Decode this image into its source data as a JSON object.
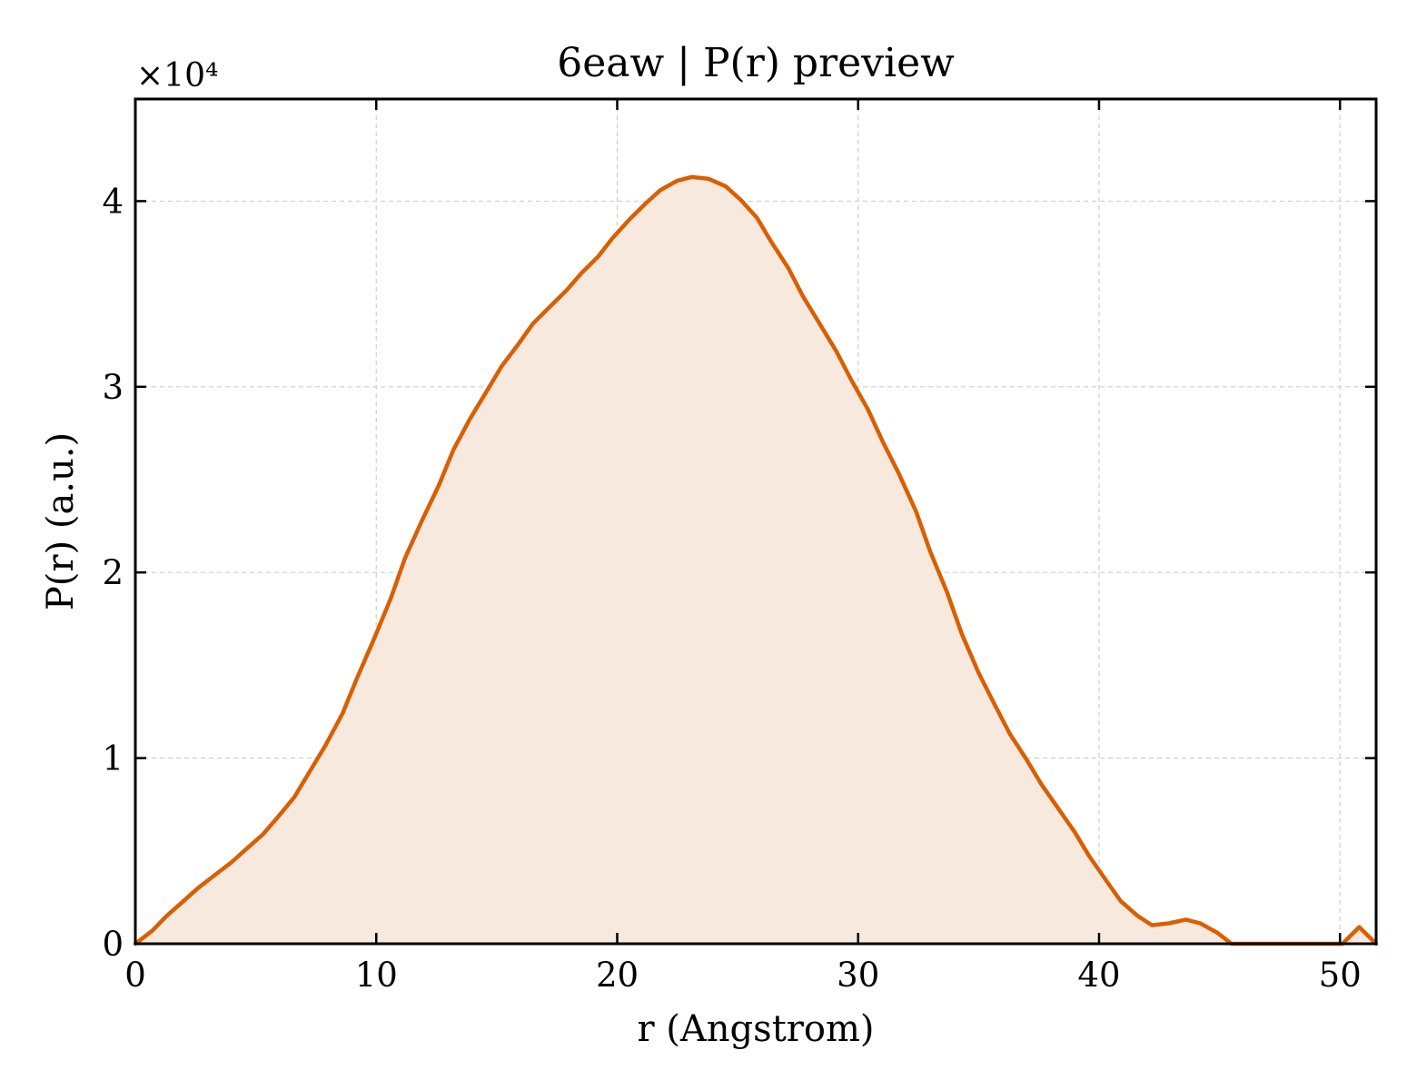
{
  "chart_data": {
    "type": "area",
    "title": "6eaw | P(r) preview",
    "xlabel": "r (Angstrom)",
    "ylabel": "P(r) (a.u.)",
    "y_multiplier_label": "×10⁴",
    "xlim": [
      0,
      51.5
    ],
    "ylim": [
      0,
      45500
    ],
    "x_ticks": [
      0,
      10,
      20,
      30,
      40,
      50
    ],
    "x_tick_labels": [
      "0",
      "10",
      "20",
      "30",
      "40",
      "50"
    ],
    "y_ticks": [
      0,
      10000,
      20000,
      30000,
      40000
    ],
    "y_tick_labels": [
      "0",
      "1",
      "2",
      "3",
      "4"
    ],
    "grid": true,
    "legend": "none",
    "colors": {
      "line": "#d95f02",
      "fill": "#f8e9df"
    },
    "series": [
      {
        "x": [
          0,
          0.7,
          1.3,
          2.0,
          2.6,
          3.3,
          4.0,
          4.6,
          5.3,
          5.9,
          6.6,
          7.2,
          7.9,
          8.6,
          9.2,
          9.9,
          10.6,
          11.2,
          11.9,
          12.6,
          13.2,
          13.9,
          14.6,
          15.2,
          15.9,
          16.5,
          17.2,
          17.9,
          18.5,
          19.2,
          19.8,
          20.5,
          21.2,
          21.8,
          22.5,
          23.1,
          23.8,
          24.5,
          25.1,
          25.8,
          26.4,
          27.1,
          27.7,
          28.4,
          29.1,
          29.7,
          30.4,
          31.0,
          31.7,
          32.4,
          33.0,
          33.7,
          34.3,
          35.0,
          35.7,
          36.3,
          37.0,
          37.6,
          38.3,
          39.0,
          39.6,
          40.3,
          40.9,
          41.6,
          42.2,
          42.9,
          43.6,
          44.2,
          44.9,
          45.5,
          46.2,
          46.8,
          47.5,
          48.2,
          48.8,
          49.5,
          50.1,
          50.8,
          51.5
        ],
        "y": [
          0,
          700,
          1500,
          2300,
          3000,
          3700,
          4400,
          5100,
          5900,
          6800,
          7900,
          9200,
          10700,
          12400,
          14300,
          16400,
          18600,
          20800,
          22800,
          24700,
          26600,
          28300,
          29800,
          31100,
          32300,
          33400,
          34300,
          35200,
          36100,
          37000,
          38000,
          39000,
          39900,
          40600,
          41100,
          41300,
          41200,
          40800,
          40100,
          39100,
          37800,
          36400,
          34900,
          33400,
          31900,
          30400,
          28800,
          27100,
          25300,
          23300,
          21100,
          18900,
          16700,
          14600,
          12800,
          11300,
          9900,
          8600,
          7300,
          6000,
          4700,
          3400,
          2300,
          1500,
          1000,
          1100,
          1300,
          1100,
          600,
          0,
          0,
          0,
          0,
          0,
          0,
          0,
          0,
          900,
          0
        ]
      }
    ]
  }
}
